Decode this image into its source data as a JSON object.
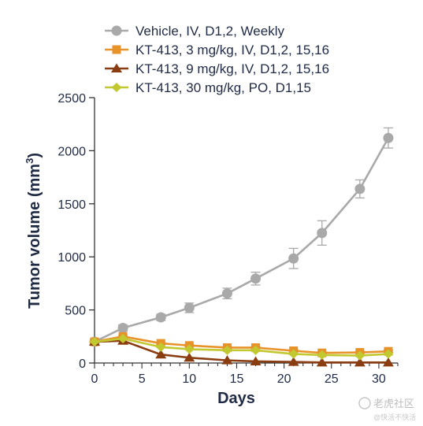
{
  "chart_data": {
    "type": "line",
    "xlabel": "Days",
    "ylabel": "Tumor volume (mm",
    "ylabel_sup": "3",
    "ylabel_end": ")",
    "xlim": [
      0,
      32
    ],
    "ylim": [
      0,
      2500
    ],
    "xticks": [
      0,
      5,
      10,
      15,
      20,
      25,
      30
    ],
    "yticks": [
      0,
      500,
      1000,
      1500,
      2000,
      2500
    ],
    "legend_position": "top",
    "grid": false,
    "series": [
      {
        "name": "Vehicle, IV, D1,2, Weekly",
        "color": "#a9a9a9",
        "marker": "circle",
        "x": [
          0,
          3,
          7,
          10,
          14,
          17,
          21,
          24,
          28,
          31
        ],
        "y": [
          200,
          330,
          430,
          520,
          655,
          795,
          985,
          1225,
          1640,
          2120
        ],
        "err": [
          20,
          30,
          30,
          45,
          50,
          60,
          95,
          115,
          85,
          95
        ]
      },
      {
        "name": "KT-413, 3 mg/kg, IV, D1,2, 15,16",
        "color": "#e8922a",
        "marker": "square",
        "x": [
          0,
          3,
          7,
          10,
          14,
          17,
          21,
          24,
          28,
          31
        ],
        "y": [
          200,
          250,
          185,
          165,
          145,
          145,
          115,
          95,
          100,
          110
        ],
        "err": [
          10,
          10,
          10,
          10,
          10,
          10,
          10,
          10,
          10,
          10
        ]
      },
      {
        "name": "KT-413, 9 mg/kg, IV, D1,2, 15,16",
        "color": "#8b3d12",
        "marker": "triangle",
        "x": [
          0,
          3,
          7,
          10,
          14,
          17,
          21,
          24,
          28,
          31
        ],
        "y": [
          200,
          210,
          80,
          50,
          25,
          15,
          10,
          5,
          5,
          5
        ],
        "err": [
          0,
          0,
          0,
          0,
          0,
          0,
          0,
          0,
          0,
          0
        ]
      },
      {
        "name": "KT-413, 30 mg/kg, PO, D1,15",
        "color": "#c2c930",
        "marker": "diamond",
        "x": [
          0,
          3,
          7,
          10,
          14,
          17,
          21,
          24,
          28,
          31
        ],
        "y": [
          200,
          230,
          150,
          130,
          120,
          120,
          85,
          75,
          70,
          85
        ],
        "err": [
          0,
          0,
          0,
          0,
          0,
          0,
          0,
          0,
          0,
          0
        ]
      }
    ]
  },
  "watermark": {
    "main": "老虎社区",
    "sub": "@快活不快活"
  }
}
